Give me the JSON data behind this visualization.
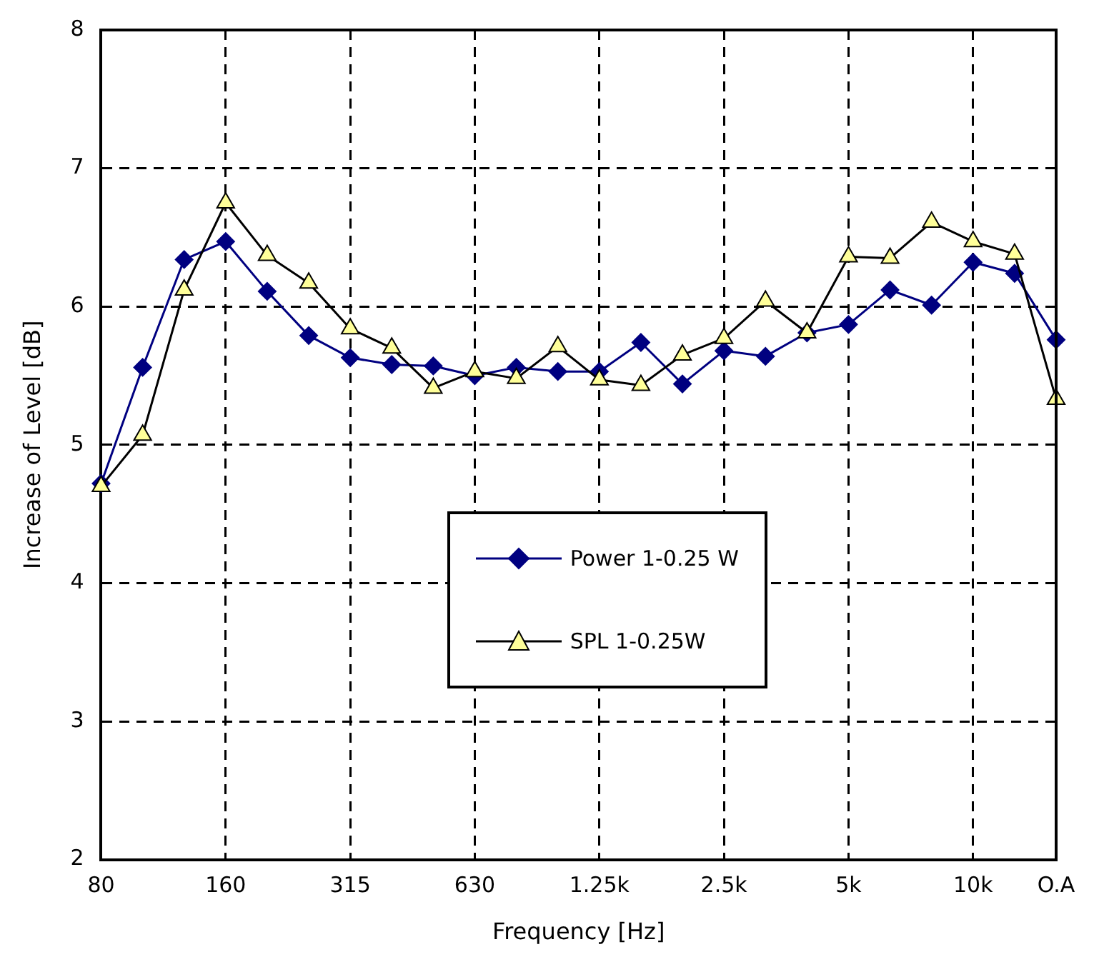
{
  "chart_data": {
    "type": "line",
    "xlabel": "Frequency [Hz]",
    "ylabel": "Increase of Level [dB]",
    "categories": [
      "80",
      null,
      null,
      "160",
      null,
      null,
      "315",
      null,
      null,
      "630",
      null,
      null,
      "1.25k",
      null,
      null,
      "2.5k",
      null,
      null,
      "5k",
      null,
      null,
      "10k",
      null,
      "O.A"
    ],
    "series": [
      {
        "name": "Power 1-0.25 W",
        "color": "#000080",
        "marker": "diamond",
        "values": [
          4.72,
          5.56,
          6.34,
          6.47,
          6.11,
          5.79,
          5.63,
          5.58,
          5.57,
          5.5,
          5.56,
          5.53,
          5.53,
          5.74,
          5.44,
          5.68,
          5.64,
          5.81,
          5.87,
          6.12,
          6.01,
          6.32,
          6.24,
          5.76
        ]
      },
      {
        "name": "SPL 1-0.25W",
        "color": "#ffff99",
        "marker": "triangle",
        "values": [
          4.7,
          5.07,
          6.12,
          6.75,
          6.37,
          6.17,
          5.84,
          5.7,
          5.41,
          5.53,
          5.48,
          5.71,
          5.47,
          5.43,
          5.65,
          5.77,
          6.04,
          5.81,
          6.36,
          6.35,
          6.61,
          6.47,
          6.38,
          5.33
        ]
      }
    ],
    "ylim": [
      2,
      8
    ],
    "yticks": [
      2,
      3,
      4,
      5,
      6,
      7,
      8
    ],
    "grid": true,
    "legend": "bottom",
    "line_style": "solid"
  }
}
